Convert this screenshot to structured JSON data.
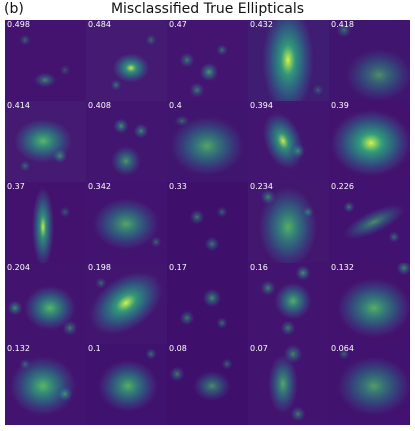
{
  "figure": {
    "panel_label": "(b)",
    "title": "Misclassified True Ellipticals"
  },
  "images": [
    {
      "score": "0.498",
      "blobs": [
        [
          40,
          60,
          6,
          4,
          0.5,
          0
        ],
        [
          20,
          20,
          3,
          3,
          0.35,
          0
        ],
        [
          60,
          50,
          3,
          3,
          0.25,
          0
        ]
      ],
      "bg": "#44126f"
    },
    {
      "score": "0.484",
      "blobs": [
        [
          45,
          48,
          10,
          8,
          0.85,
          0
        ],
        [
          30,
          65,
          3,
          3,
          0.4,
          0
        ],
        [
          65,
          20,
          3,
          3,
          0.35,
          0
        ]
      ],
      "bg": "#451a72"
    },
    {
      "score": "0.47",
      "blobs": [
        [
          42,
          52,
          5,
          5,
          0.6,
          0
        ],
        [
          20,
          40,
          4,
          4,
          0.45,
          0
        ],
        [
          55,
          30,
          3,
          3,
          0.4,
          0
        ],
        [
          30,
          70,
          4,
          4,
          0.45,
          0
        ]
      ],
      "bg": "#441570"
    },
    {
      "score": "0.432",
      "blobs": [
        [
          40,
          40,
          14,
          30,
          0.9,
          0
        ],
        [
          70,
          70,
          3,
          3,
          0.3,
          0
        ]
      ],
      "bg": "#3f1d73"
    },
    {
      "score": "0.418",
      "blobs": [
        [
          50,
          55,
          18,
          14,
          0.55,
          0
        ],
        [
          15,
          10,
          4,
          4,
          0.4,
          0
        ]
      ],
      "bg": "#40156f"
    },
    {
      "score": "0.414",
      "blobs": [
        [
          38,
          40,
          16,
          12,
          0.8,
          0
        ],
        [
          55,
          55,
          4,
          4,
          0.5,
          0
        ],
        [
          20,
          65,
          3,
          3,
          0.35,
          0
        ]
      ],
      "bg": "#451a72"
    },
    {
      "score": "0.408",
      "blobs": [
        [
          40,
          60,
          8,
          8,
          0.6,
          0
        ],
        [
          35,
          25,
          4,
          4,
          0.55,
          0
        ],
        [
          55,
          30,
          4,
          4,
          0.5,
          0
        ]
      ],
      "bg": "#421670"
    },
    {
      "score": "0.4",
      "blobs": [
        [
          40,
          45,
          20,
          16,
          0.7,
          0
        ],
        [
          15,
          20,
          4,
          3,
          0.35,
          0
        ]
      ],
      "bg": "#40156f"
    },
    {
      "score": "0.394",
      "blobs": [
        [
          35,
          40,
          10,
          16,
          0.85,
          -20
        ],
        [
          50,
          50,
          4,
          4,
          0.45,
          0
        ]
      ],
      "bg": "#421670"
    },
    {
      "score": "0.39",
      "blobs": [
        [
          42,
          42,
          22,
          18,
          0.95,
          0
        ]
      ],
      "bg": "#43126f"
    },
    {
      "score": "0.37",
      "blobs": [
        [
          38,
          45,
          6,
          22,
          0.85,
          0
        ],
        [
          60,
          30,
          3,
          3,
          0.3,
          0
        ]
      ],
      "bg": "#43116e"
    },
    {
      "score": "0.342",
      "blobs": [
        [
          40,
          42,
          18,
          14,
          0.7,
          0
        ],
        [
          70,
          60,
          3,
          3,
          0.35,
          0
        ]
      ],
      "bg": "#421370"
    },
    {
      "score": "0.33",
      "blobs": [
        [
          45,
          62,
          4,
          4,
          0.45,
          0
        ],
        [
          30,
          35,
          4,
          4,
          0.45,
          0
        ],
        [
          55,
          30,
          3,
          3,
          0.35,
          0
        ]
      ],
      "bg": "#3e0f6b"
    },
    {
      "score": "0.234",
      "blobs": [
        [
          40,
          45,
          16,
          22,
          0.75,
          0
        ],
        [
          20,
          15,
          4,
          4,
          0.5,
          0
        ],
        [
          60,
          30,
          3,
          3,
          0.4,
          0
        ]
      ],
      "bg": "#43166f"
    },
    {
      "score": "0.226",
      "blobs": [
        [
          45,
          40,
          18,
          6,
          0.55,
          -25
        ],
        [
          20,
          25,
          3,
          3,
          0.45,
          0
        ],
        [
          65,
          55,
          3,
          3,
          0.4,
          0
        ]
      ],
      "bg": "#421270"
    },
    {
      "score": "0.204",
      "blobs": [
        [
          45,
          45,
          14,
          12,
          0.8,
          0
        ],
        [
          10,
          45,
          4,
          4,
          0.55,
          0
        ],
        [
          65,
          65,
          4,
          4,
          0.45,
          0
        ]
      ],
      "bg": "#43146f"
    },
    {
      "score": "0.198",
      "blobs": [
        [
          40,
          40,
          22,
          14,
          0.9,
          -35
        ],
        [
          15,
          20,
          3,
          3,
          0.35,
          0
        ]
      ],
      "bg": "#421670"
    },
    {
      "score": "0.17",
      "blobs": [
        [
          45,
          35,
          5,
          5,
          0.55,
          0
        ],
        [
          20,
          55,
          4,
          4,
          0.45,
          0
        ],
        [
          55,
          60,
          3,
          3,
          0.4,
          0
        ]
      ],
      "bg": "#3e0f6b"
    },
    {
      "score": "0.16",
      "blobs": [
        [
          45,
          38,
          10,
          10,
          0.75,
          0
        ],
        [
          20,
          25,
          4,
          4,
          0.5,
          0
        ],
        [
          55,
          10,
          4,
          4,
          0.55,
          0
        ],
        [
          40,
          65,
          4,
          4,
          0.45,
          0
        ]
      ],
      "bg": "#43146f"
    },
    {
      "score": "0.132",
      "blobs": [
        [
          45,
          45,
          20,
          16,
          0.75,
          0
        ],
        [
          75,
          5,
          4,
          4,
          0.5,
          0
        ]
      ],
      "bg": "#43126f"
    },
    {
      "score": "0.132",
      "blobs": [
        [
          38,
          42,
          18,
          16,
          0.8,
          0
        ],
        [
          60,
          50,
          4,
          4,
          0.5,
          0
        ],
        [
          20,
          20,
          3,
          3,
          0.35,
          0
        ]
      ],
      "bg": "#421470"
    },
    {
      "score": "0.1",
      "blobs": [
        [
          42,
          42,
          16,
          14,
          0.75,
          0
        ],
        [
          65,
          10,
          3,
          3,
          0.4,
          0
        ]
      ],
      "bg": "#40126f"
    },
    {
      "score": "0.08",
      "blobs": [
        [
          45,
          42,
          10,
          8,
          0.55,
          0
        ],
        [
          10,
          30,
          4,
          4,
          0.45,
          0
        ],
        [
          60,
          20,
          3,
          3,
          0.35,
          0
        ]
      ],
      "bg": "#3f106b"
    },
    {
      "score": "0.07",
      "blobs": [
        [
          35,
          40,
          8,
          16,
          0.7,
          0
        ],
        [
          45,
          10,
          5,
          5,
          0.5,
          0
        ],
        [
          50,
          70,
          4,
          4,
          0.45,
          0
        ]
      ],
      "bg": "#43146f"
    },
    {
      "score": "0.064",
      "blobs": [
        [
          45,
          42,
          20,
          16,
          0.65,
          0
        ],
        [
          15,
          10,
          3,
          3,
          0.35,
          0
        ]
      ],
      "bg": "#41126f"
    }
  ]
}
